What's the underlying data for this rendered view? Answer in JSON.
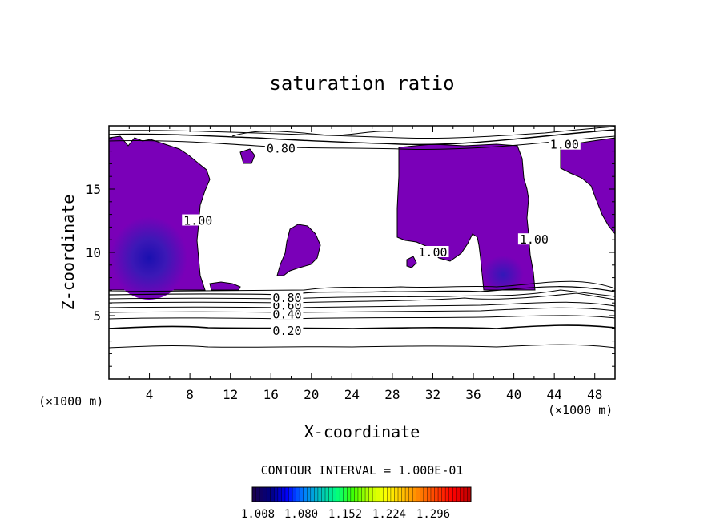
{
  "chart_data": {
    "type": "contour",
    "title": "saturation ratio",
    "xlabel": "X-coordinate",
    "ylabel": "Z-coordinate",
    "x_unit": "(×1000 m)",
    "z_unit": "(×1000 m)",
    "xlim": [
      0,
      50
    ],
    "ylim": [
      0,
      20
    ],
    "x_ticks": [
      4,
      8,
      12,
      16,
      20,
      24,
      28,
      32,
      36,
      40,
      44,
      48
    ],
    "y_ticks": [
      5,
      10,
      15
    ],
    "contour_interval_label": "CONTOUR INTERVAL = 1.000E-01",
    "contour_labels": [
      {
        "text": "0.20",
        "x": 17.6,
        "z": 3.8
      },
      {
        "text": "0.40",
        "x": 17.6,
        "z": 5.1
      },
      {
        "text": "0.60",
        "x": 17.6,
        "z": 5.8
      },
      {
        "text": "0.80",
        "x": 17.6,
        "z": 6.4
      },
      {
        "text": "0.80",
        "x": 17.0,
        "z": 18.2
      },
      {
        "text": "1.00",
        "x": 8.8,
        "z": 12.5
      },
      {
        "text": "1.00",
        "x": 32.0,
        "z": 10.0
      },
      {
        "text": "1.00",
        "x": 42.0,
        "z": 11.0
      },
      {
        "text": "1.00",
        "x": 45.0,
        "z": 18.5
      }
    ],
    "colorbar": {
      "tick_labels": [
        "1.008",
        "1.080",
        "1.152",
        "1.224",
        "1.296"
      ],
      "colors": [
        "#1a0050",
        "#000080",
        "#0000ff",
        "#0080ff",
        "#00c0c0",
        "#00ff80",
        "#40ff00",
        "#c0ff00",
        "#ffff00",
        "#ffc000",
        "#ff8000",
        "#ff4000",
        "#ff0000",
        "#c00000"
      ]
    },
    "supersaturated_fill": "#7a00b8",
    "deep_fill": "#1a00a0"
  }
}
